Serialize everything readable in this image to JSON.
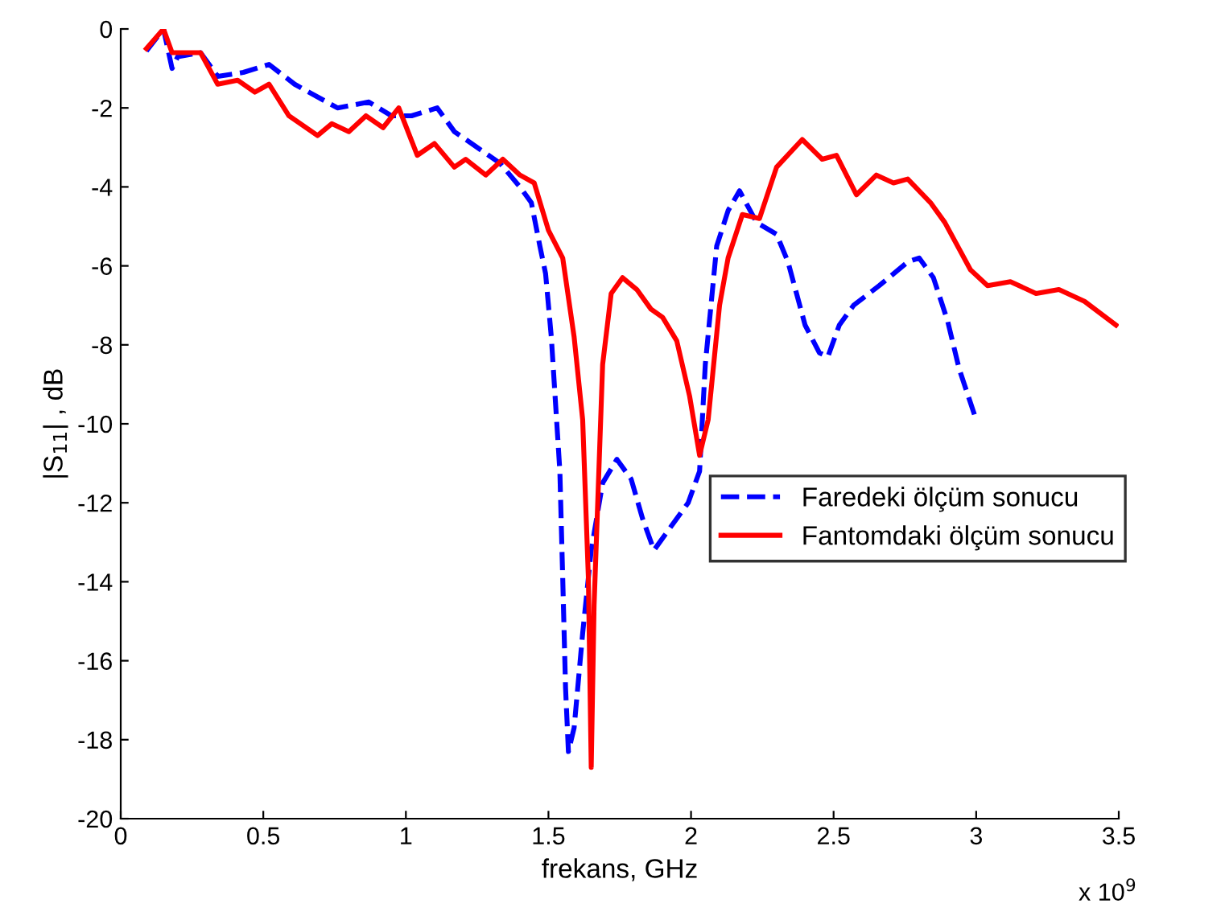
{
  "chart_data": {
    "type": "line",
    "xlabel": "frekans, GHz",
    "ylabel": "|S$_{11}$| , dB",
    "annotations": [
      "x 10$^{9}$"
    ],
    "xlim": [
      0,
      3.5
    ],
    "xticks": [
      0,
      0.5,
      1,
      1.5,
      2,
      2.5,
      3,
      3.5
    ],
    "ylim": [
      -20,
      0
    ],
    "yticks": [
      -20,
      -18,
      -16,
      -14,
      -12,
      -10,
      -8,
      -6,
      -4,
      -2,
      0
    ],
    "grid": false,
    "legend": "right",
    "marker": "none",
    "series": [
      {
        "name": "Faredeki ölçüm sonucu",
        "color": "#0000ff",
        "line_style": "dashed",
        "x": [
          0.09,
          0.15,
          0.18,
          0.2,
          0.28,
          0.34,
          0.43,
          0.52,
          0.61,
          0.76,
          0.87,
          0.95,
          1.02,
          1.11,
          1.17,
          1.27,
          1.33,
          1.4,
          1.44,
          1.47,
          1.49,
          1.51,
          1.54,
          1.55,
          1.56,
          1.57,
          1.59,
          1.62,
          1.65,
          1.69,
          1.74,
          1.79,
          1.83,
          1.87,
          1.92,
          1.99,
          2.03,
          2.05,
          2.09,
          2.13,
          2.17,
          2.23,
          2.3,
          2.34,
          2.4,
          2.45,
          2.48,
          2.52,
          2.57,
          2.66,
          2.76,
          2.8,
          2.85,
          2.9,
          2.94,
          3.0
        ],
        "values": [
          -0.56,
          0,
          -1.0,
          -0.7,
          -0.6,
          -1.2,
          -1.1,
          -0.9,
          -1.4,
          -2.0,
          -1.85,
          -2.2,
          -2.2,
          -2.0,
          -2.6,
          -3.1,
          -3.4,
          -4.0,
          -4.4,
          -5.5,
          -6.2,
          -7.8,
          -11.2,
          -13.9,
          -16.7,
          -18.3,
          -17.7,
          -15.3,
          -13.2,
          -11.5,
          -10.9,
          -11.4,
          -12.4,
          -13.2,
          -12.7,
          -12.0,
          -11.2,
          -8.5,
          -5.5,
          -4.6,
          -4.1,
          -4.9,
          -5.2,
          -5.9,
          -7.5,
          -8.2,
          -8.3,
          -7.5,
          -7.0,
          -6.5,
          -5.9,
          -5.8,
          -6.3,
          -7.4,
          -8.6,
          -9.9
        ]
      },
      {
        "name": "Fantomdaki ölçüm sonucu",
        "color": "#ff0000",
        "line_style": "solid",
        "x": [
          0.09,
          0.15,
          0.18,
          0.22,
          0.28,
          0.34,
          0.41,
          0.47,
          0.52,
          0.59,
          0.69,
          0.74,
          0.8,
          0.86,
          0.92,
          0.975,
          1.04,
          1.1,
          1.17,
          1.21,
          1.28,
          1.34,
          1.4,
          1.45,
          1.5,
          1.55,
          1.59,
          1.62,
          1.64,
          1.65,
          1.66,
          1.69,
          1.72,
          1.76,
          1.81,
          1.86,
          1.9,
          1.95,
          1.995,
          2.03,
          2.06,
          2.1,
          2.13,
          2.18,
          2.24,
          2.3,
          2.39,
          2.46,
          2.51,
          2.58,
          2.65,
          2.71,
          2.76,
          2.84,
          2.89,
          2.98,
          3.04,
          3.12,
          3.21,
          3.29,
          3.38,
          3.49
        ],
        "values": [
          -0.5,
          0,
          -0.6,
          -0.6,
          -0.6,
          -1.4,
          -1.3,
          -1.6,
          -1.4,
          -2.2,
          -2.7,
          -2.4,
          -2.6,
          -2.2,
          -2.5,
          -2.0,
          -3.2,
          -2.9,
          -3.5,
          -3.3,
          -3.7,
          -3.3,
          -3.7,
          -3.9,
          -5.1,
          -5.8,
          -7.8,
          -9.9,
          -13.9,
          -18.7,
          -14.6,
          -8.5,
          -6.7,
          -6.3,
          -6.6,
          -7.1,
          -7.3,
          -7.9,
          -9.3,
          -10.8,
          -9.9,
          -7.0,
          -5.8,
          -4.7,
          -4.8,
          -3.5,
          -2.8,
          -3.3,
          -3.2,
          -4.2,
          -3.7,
          -3.9,
          -3.8,
          -4.4,
          -4.9,
          -6.1,
          -6.5,
          -6.4,
          -6.7,
          -6.6,
          -6.9,
          -7.5
        ]
      }
    ]
  }
}
